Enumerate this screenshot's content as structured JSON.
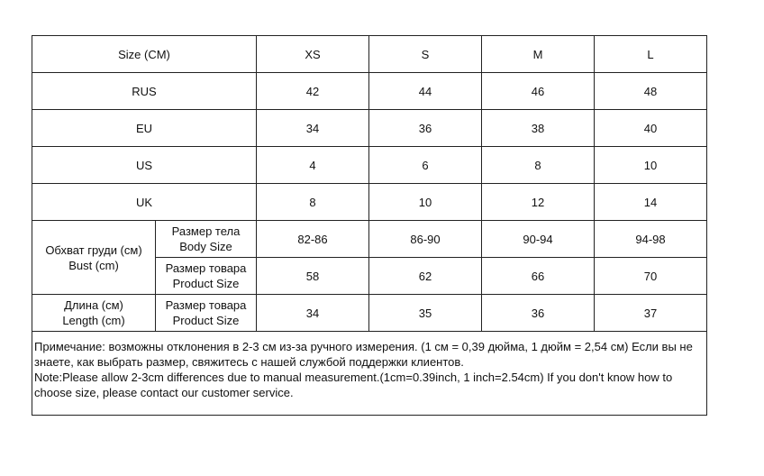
{
  "header": {
    "label": "Size (CM)",
    "sizes": [
      "XS",
      "S",
      "M",
      "L"
    ]
  },
  "rows": [
    {
      "label": "RUS",
      "values": [
        "42",
        "44",
        "46",
        "48"
      ]
    },
    {
      "label": "EU",
      "values": [
        "34",
        "36",
        "38",
        "40"
      ]
    },
    {
      "label": "US",
      "values": [
        "4",
        "6",
        "8",
        "10"
      ]
    },
    {
      "label": "UK",
      "values": [
        "8",
        "10",
        "12",
        "14"
      ]
    }
  ],
  "bust": {
    "label_ru": "Обхват груди (см)",
    "label_en": "Bust (cm)",
    "body": {
      "ru": "Размер тела",
      "en": "Body Size",
      "values": [
        "82-86",
        "86-90",
        "90-94",
        "94-98"
      ]
    },
    "product": {
      "ru": "Размер товара",
      "en": "Product Size",
      "values": [
        "58",
        "62",
        "66",
        "70"
      ]
    }
  },
  "length": {
    "label_ru": "Длина (см)",
    "label_en": "Length (cm)",
    "product": {
      "ru": "Размер товара",
      "en": "Product Size",
      "values": [
        "34",
        "35",
        "36",
        "37"
      ]
    }
  },
  "note": {
    "ru": "Примечание: возможны отклонения в 2-3 см из-за ручного измерения. (1 см = 0,39 дюйма, 1 дюйм = 2,54 см) Если вы не знаете, как выбрать размер, свяжитесь с нашей службой поддержки клиентов.",
    "en": "Note:Please allow 2-3cm differences due to manual measurement.(1cm=0.39inch, 1 inch=2.54cm) If you don't know how to choose size, please contact our customer service."
  }
}
